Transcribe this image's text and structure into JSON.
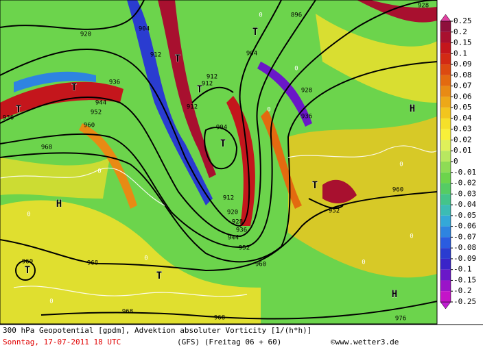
{
  "map": {
    "labels": [
      "T",
      "T",
      "T",
      "T",
      "T",
      "T",
      "T",
      "T",
      "T",
      "H",
      "H",
      "H",
      "920",
      "904",
      "896",
      "928",
      "904",
      "912",
      "912",
      "912",
      "912",
      "936",
      "944",
      "952",
      "960",
      "936",
      "968",
      "928",
      "936",
      "904",
      "912",
      "920",
      "928",
      "936",
      "944",
      "952",
      "952",
      "960",
      "960",
      "968",
      "968",
      "968",
      "976",
      "960",
      "0",
      "0",
      "0",
      "0",
      "0",
      "0",
      "0",
      "0",
      "0",
      "0"
    ]
  },
  "colorbar": {
    "ticks": [
      0.25,
      0.2,
      0.15,
      0.1,
      0.09,
      0.08,
      0.07,
      0.06,
      0.05,
      0.04,
      0.03,
      0.02,
      0.01,
      0,
      -0.01,
      -0.02,
      -0.03,
      -0.04,
      -0.05,
      -0.06,
      -0.07,
      -0.08,
      -0.09,
      -0.1,
      -0.15,
      -0.2,
      -0.25
    ],
    "colors": [
      "#8e0f3c",
      "#a8102f",
      "#c4161c",
      "#d22a14",
      "#dc4a10",
      "#e36a10",
      "#e88a14",
      "#eda818",
      "#f2c51e",
      "#f5e02a",
      "#f8f03a",
      "#dff05a",
      "#b8e860",
      "#8edc55",
      "#6cd44c",
      "#55cc64",
      "#44c48a",
      "#3cbcb4",
      "#34a8d8",
      "#2e84e0",
      "#2a5ce0",
      "#2a3cd0",
      "#3a24c8",
      "#6a18c8",
      "#9a14c8",
      "#c414c8"
    ],
    "top_color": "#e040a0",
    "bottom_color": "#c020d0"
  },
  "footer": {
    "line1": "300 hPa Geopotential [gpdm], Advektion absoluter Vorticity [1/(h*h)]",
    "date": "Sonntag, 17-07-2011  18 UTC",
    "model": "(GFS)  (Freitag 06 + 60)",
    "credit": "©www.wetter3.de"
  }
}
